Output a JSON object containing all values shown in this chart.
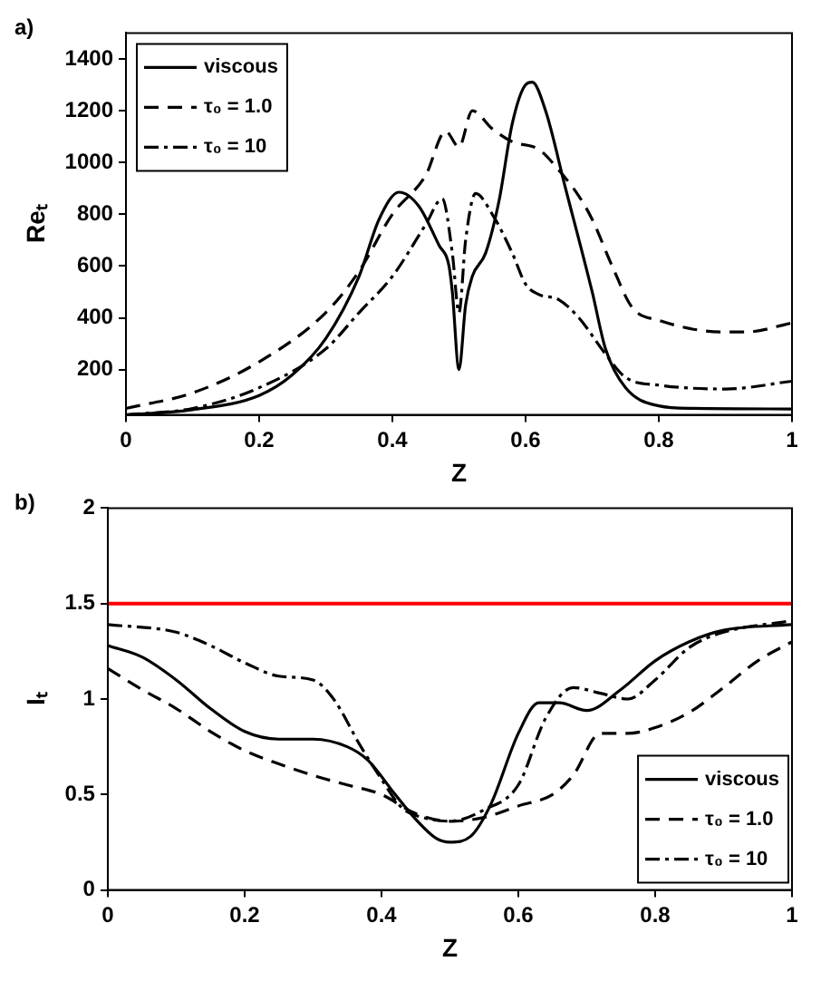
{
  "chart_data": [
    {
      "type": "line",
      "annotations": [
        "a)"
      ],
      "xlabel": "Z",
      "ylabel": "Reₜ",
      "xlim": [
        0,
        1
      ],
      "xticks": [
        0,
        0.2,
        0.4,
        0.6,
        0.8,
        1
      ],
      "ylim": [
        25,
        1500
      ],
      "yticks": [
        200,
        400,
        600,
        800,
        1000,
        1200,
        1400
      ],
      "grid": false,
      "legend": "top left",
      "marker": "none",
      "series": [
        {
          "name": "viscous",
          "color": "#000000",
          "line_style": "solid",
          "x": [
            0,
            0.1,
            0.2,
            0.25,
            0.3,
            0.35,
            0.38,
            0.41,
            0.44,
            0.47,
            0.485,
            0.49,
            0.5,
            0.51,
            0.52,
            0.54,
            0.56,
            0.58,
            0.6,
            0.61,
            0.63,
            0.66,
            0.7,
            0.72,
            0.75,
            0.8,
            0.85,
            1
          ],
          "values": [
            25,
            45,
            100,
            180,
            320,
            560,
            780,
            885,
            830,
            680,
            600,
            500,
            200,
            450,
            560,
            650,
            850,
            1150,
            1300,
            1310,
            1200,
            900,
            500,
            280,
            130,
            60,
            50,
            48
          ]
        },
        {
          "name": "τ₀ = 1.0",
          "color": "#000000",
          "line_style": "dashed",
          "x": [
            0,
            0.1,
            0.2,
            0.3,
            0.35,
            0.4,
            0.45,
            0.48,
            0.5,
            0.52,
            0.55,
            0.58,
            0.62,
            0.65,
            0.68,
            0.7,
            0.73,
            0.76,
            0.8,
            0.9,
            0.93,
            1
          ],
          "values": [
            50,
            110,
            230,
            420,
            580,
            800,
            950,
            1120,
            1060,
            1200,
            1130,
            1080,
            1050,
            970,
            870,
            780,
            600,
            440,
            390,
            345,
            345,
            380
          ]
        },
        {
          "name": "τ₀ = 10",
          "color": "#000000",
          "line_style": "dashdot",
          "x": [
            0,
            0.1,
            0.2,
            0.3,
            0.35,
            0.4,
            0.45,
            0.475,
            0.49,
            0.5,
            0.51,
            0.525,
            0.55,
            0.58,
            0.6,
            0.62,
            0.65,
            0.68,
            0.72,
            0.75,
            0.8,
            0.9,
            1
          ],
          "values": [
            25,
            50,
            130,
            280,
            420,
            560,
            760,
            860,
            650,
            420,
            700,
            880,
            800,
            650,
            530,
            490,
            470,
            400,
            260,
            170,
            140,
            125,
            155
          ]
        }
      ]
    },
    {
      "type": "line",
      "annotations": [
        "b)"
      ],
      "xlabel": "Z",
      "ylabel": "Iₜ",
      "xlim": [
        0,
        1
      ],
      "xticks": [
        0,
        0.2,
        0.4,
        0.6,
        0.8,
        1
      ],
      "ylim": [
        0,
        2
      ],
      "yticks": [
        0,
        0.5,
        1,
        1.5,
        2
      ],
      "grid": false,
      "legend": "bottom right",
      "marker": "none",
      "ref_lines": [
        {
          "axis": "y",
          "value": 1.5,
          "color": "#ff0000"
        }
      ],
      "series": [
        {
          "name": "viscous",
          "color": "#000000",
          "line_style": "solid",
          "x": [
            0,
            0.05,
            0.1,
            0.15,
            0.2,
            0.25,
            0.3,
            0.35,
            0.38,
            0.42,
            0.45,
            0.48,
            0.5,
            0.53,
            0.56,
            0.6,
            0.63,
            0.66,
            0.7,
            0.75,
            0.8,
            0.85,
            0.9,
            1
          ],
          "values": [
            1.28,
            1.22,
            1.1,
            0.95,
            0.83,
            0.79,
            0.79,
            0.75,
            0.68,
            0.5,
            0.37,
            0.27,
            0.25,
            0.28,
            0.45,
            0.82,
            0.98,
            0.98,
            0.94,
            1.05,
            1.2,
            1.3,
            1.36,
            1.39
          ]
        },
        {
          "name": "τ₀ = 1.0",
          "color": "#000000",
          "line_style": "dashed",
          "x": [
            0,
            0.05,
            0.1,
            0.15,
            0.2,
            0.25,
            0.3,
            0.35,
            0.4,
            0.45,
            0.5,
            0.55,
            0.6,
            0.65,
            0.68,
            0.72,
            0.76,
            0.8,
            0.85,
            0.9,
            0.95,
            1
          ],
          "values": [
            1.16,
            1.05,
            0.95,
            0.83,
            0.73,
            0.66,
            0.6,
            0.55,
            0.5,
            0.4,
            0.36,
            0.38,
            0.44,
            0.5,
            0.6,
            0.82,
            0.82,
            0.85,
            0.93,
            1.06,
            1.2,
            1.3
          ]
        },
        {
          "name": "τ₀ = 10",
          "color": "#000000",
          "line_style": "dashdot",
          "x": [
            0,
            0.1,
            0.15,
            0.2,
            0.25,
            0.3,
            0.33,
            0.37,
            0.4,
            0.43,
            0.46,
            0.5,
            0.55,
            0.6,
            0.64,
            0.68,
            0.72,
            0.76,
            0.8,
            0.85,
            0.9,
            1
          ],
          "values": [
            1.39,
            1.35,
            1.28,
            1.19,
            1.12,
            1.1,
            1.0,
            0.75,
            0.58,
            0.43,
            0.38,
            0.36,
            0.42,
            0.55,
            0.9,
            1.06,
            1.03,
            1.0,
            1.1,
            1.27,
            1.35,
            1.41
          ]
        }
      ]
    }
  ]
}
